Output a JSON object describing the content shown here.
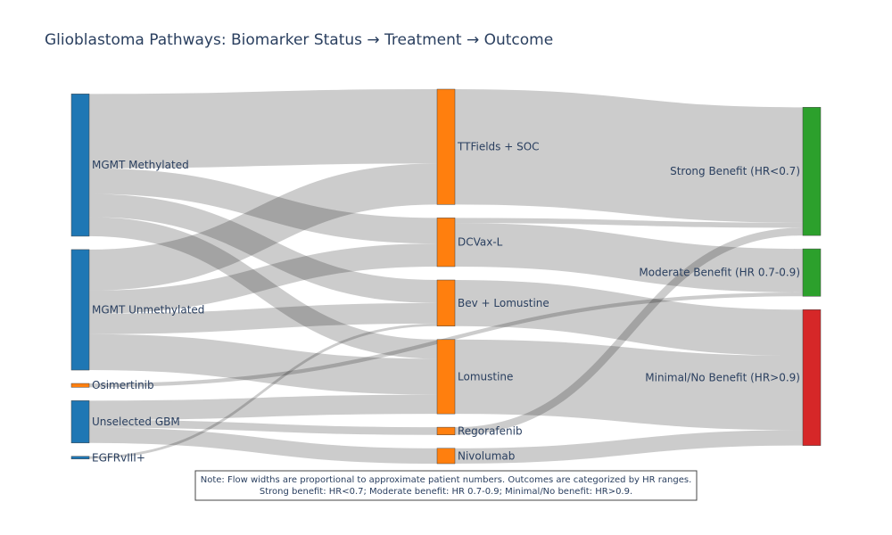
{
  "chart_data": {
    "type": "sankey",
    "title": "Glioblastoma Pathways: Biomarker Status → Treatment → Outcome",
    "nodes": [
      {
        "id": "mgmt_m",
        "label": "MGMT Methylated",
        "column": 0,
        "color": "#1f77b4"
      },
      {
        "id": "mgmt_u",
        "label": "MGMT Unmethylated",
        "column": 0,
        "color": "#1f77b4"
      },
      {
        "id": "osi",
        "label": "Osimertinib",
        "column": 0,
        "color": "#ff7f0e"
      },
      {
        "id": "unsel",
        "label": "Unselected GBM",
        "column": 0,
        "color": "#1f77b4"
      },
      {
        "id": "egfr",
        "label": "EGFRvIII+",
        "column": 0,
        "color": "#1f77b4"
      },
      {
        "id": "ttf",
        "label": "TTFields + SOC",
        "column": 1,
        "color": "#ff7f0e"
      },
      {
        "id": "dcv",
        "label": "DCVax-L",
        "column": 1,
        "color": "#ff7f0e"
      },
      {
        "id": "bev",
        "label": "Bev + Lomustine",
        "column": 1,
        "color": "#ff7f0e"
      },
      {
        "id": "lom",
        "label": "Lomustine",
        "column": 1,
        "color": "#ff7f0e"
      },
      {
        "id": "rego",
        "label": "Regorafenib",
        "column": 1,
        "color": "#ff7f0e"
      },
      {
        "id": "nivo",
        "label": "Nivolumab",
        "column": 1,
        "color": "#ff7f0e"
      },
      {
        "id": "strong",
        "label": "Strong Benefit (HR<0.7)",
        "column": 2,
        "color": "#2ca02c"
      },
      {
        "id": "moderate",
        "label": "Moderate Benefit (HR 0.7-0.9)",
        "column": 2,
        "color": "#2ca02c"
      },
      {
        "id": "minimal",
        "label": "Minimal/No Benefit (HR>0.9)",
        "column": 2,
        "color": "#d62728"
      }
    ],
    "links": [
      {
        "source": "mgmt_m",
        "target": "ttf",
        "value": 290
      },
      {
        "source": "mgmt_m",
        "target": "dcv",
        "value": 100
      },
      {
        "source": "mgmt_m",
        "target": "bev",
        "value": 90
      },
      {
        "source": "mgmt_m",
        "target": "lom",
        "value": 75
      },
      {
        "source": "mgmt_u",
        "target": "ttf",
        "value": 160
      },
      {
        "source": "mgmt_u",
        "target": "dcv",
        "value": 90
      },
      {
        "source": "mgmt_u",
        "target": "bev",
        "value": 80
      },
      {
        "source": "mgmt_u",
        "target": "lom",
        "value": 140
      },
      {
        "source": "unsel",
        "target": "lom",
        "value": 75
      },
      {
        "source": "unsel",
        "target": "rego",
        "value": 30
      },
      {
        "source": "unsel",
        "target": "nivo",
        "value": 60
      },
      {
        "source": "egfr",
        "target": "bev",
        "value": 10
      },
      {
        "source": "ttf",
        "target": "strong",
        "value": 450
      },
      {
        "source": "dcv",
        "target": "strong",
        "value": 20
      },
      {
        "source": "dcv",
        "target": "moderate",
        "value": 170
      },
      {
        "source": "bev",
        "target": "minimal",
        "value": 180
      },
      {
        "source": "osi",
        "target": "moderate",
        "value": 15
      },
      {
        "source": "lom",
        "target": "minimal",
        "value": 290
      },
      {
        "source": "rego",
        "target": "strong",
        "value": 30
      },
      {
        "source": "nivo",
        "target": "minimal",
        "value": 60
      }
    ],
    "note": [
      "Note: Flow widths are proportional to approximate patient numbers. Outcomes are categorized by HR ranges.",
      "Strong benefit: HR<0.7; Moderate benefit: HR 0.7-0.9; Minimal/No benefit: HR>0.9."
    ]
  }
}
